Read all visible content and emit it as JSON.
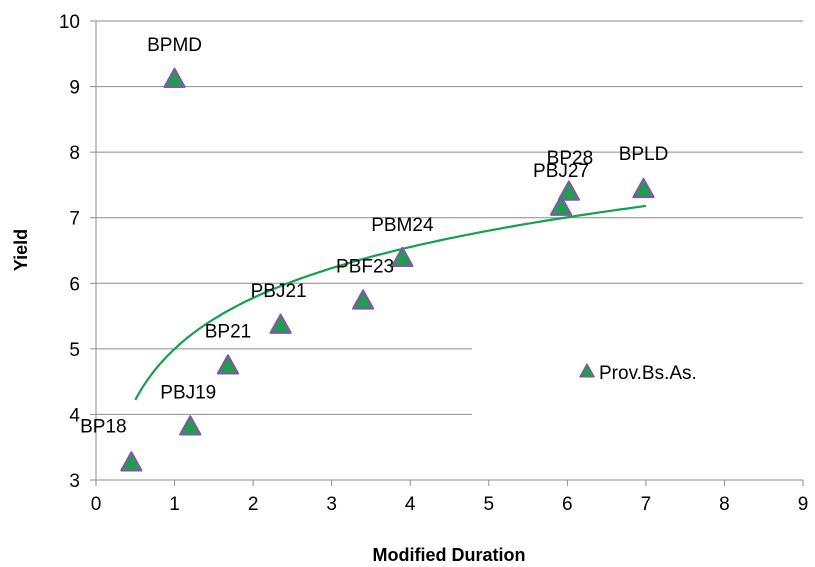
{
  "chart_data": {
    "type": "scatter",
    "title": "",
    "xlabel": "Modified Duration",
    "ylabel": "Yield",
    "xlim": [
      0,
      9
    ],
    "ylim": [
      3,
      10
    ],
    "x_ticks": [
      "0",
      "1",
      "2",
      "3",
      "4",
      "5",
      "6",
      "7",
      "8",
      "9"
    ],
    "y_ticks": [
      "3",
      "4",
      "5",
      "6",
      "7",
      "8",
      "9",
      "10"
    ],
    "grid": "horizontal",
    "legend_position": "right",
    "series": [
      {
        "name": "Prov.Bs.As.",
        "marker_fill": "#1f9e4b",
        "marker_stroke": "#7b5aa6",
        "points": [
          {
            "label": "BP18",
            "x": 0.45,
            "y": 3.25
          },
          {
            "label": "PBJ19",
            "x": 1.2,
            "y": 3.8
          },
          {
            "label": "BPMD",
            "x": 1.0,
            "y": 9.1
          },
          {
            "label": "BP21",
            "x": 1.68,
            "y": 4.73
          },
          {
            "label": "PBJ21",
            "x": 2.35,
            "y": 5.35
          },
          {
            "label": "PBF23",
            "x": 3.4,
            "y": 5.72
          },
          {
            "label": "PBM24",
            "x": 3.9,
            "y": 6.37
          },
          {
            "label": "PBJ27",
            "x": 5.92,
            "y": 7.15
          },
          {
            "label": "BP28",
            "x": 6.02,
            "y": 7.38
          },
          {
            "label": "BPLD",
            "x": 6.97,
            "y": 7.42
          }
        ]
      }
    ],
    "trendline": {
      "type": "logarithmic",
      "color": "#12a24e",
      "x_range": [
        0.5,
        7.0
      ],
      "a": 5.0,
      "b": 1.12
    }
  }
}
